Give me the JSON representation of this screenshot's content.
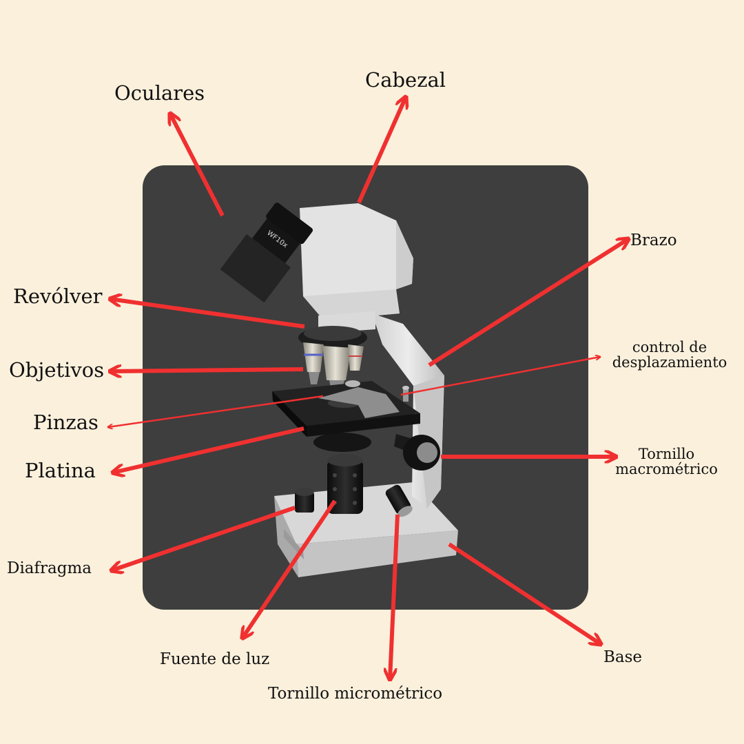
{
  "diagram": {
    "eyepiece_marking": "WF10x",
    "labels": {
      "oculares": "Oculares",
      "cabezal": "Cabezal",
      "brazo": "Brazo",
      "revolver": "Revólver",
      "control_line1": "control de",
      "control_line2": "desplazamiento",
      "objetivos": "Objetivos",
      "pinzas": "Pinzas",
      "platina": "Platina",
      "macro_line1": "Tornillo",
      "macro_line2": "macrométrico",
      "diafragma": "Diafragma",
      "fuente": "Fuente de luz",
      "micro": "Tornillo micrométrico",
      "base": "Base"
    },
    "colors": {
      "page_background": "#faf0dc",
      "photo_panel": "#3e3e3e",
      "arrow": "#f03030",
      "microscope_body": "#e2e2e2",
      "microscope_dark": "#1a1a1a"
    }
  }
}
